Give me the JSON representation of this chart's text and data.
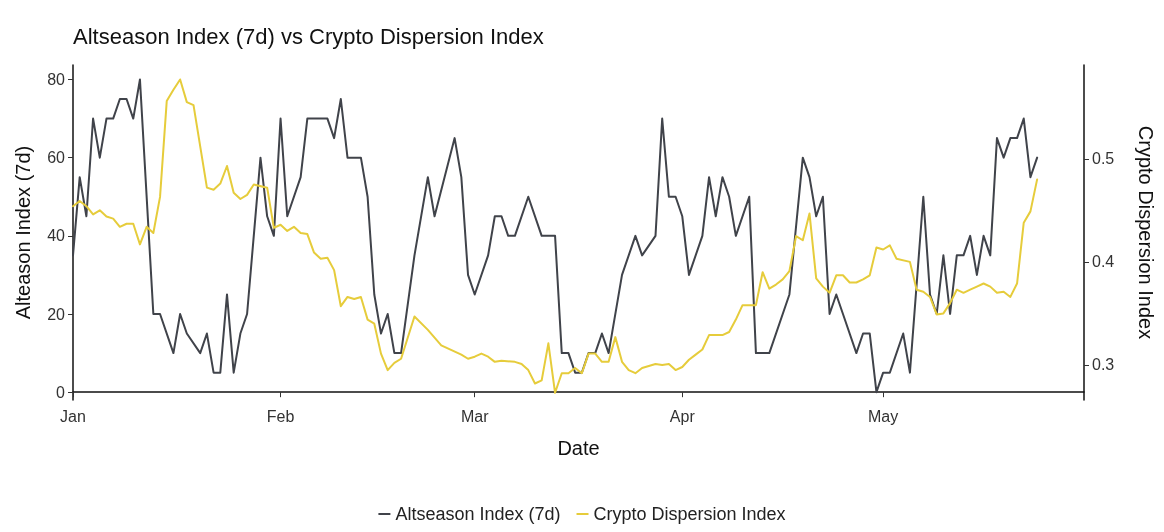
{
  "chart_data": {
    "type": "line",
    "title": "Altseason Index (7d) vs Crypto Dispersion Index",
    "xlabel": "Date",
    "ylabel": "Alteason Index (7d)",
    "y2label": "Crypto Dispersion Index",
    "xlim": [
      "--01-01",
      "--05-31"
    ],
    "xticks": [
      {
        "value": "--01-01",
        "label": "Jan"
      },
      {
        "value": "--02-01",
        "label": "Feb"
      },
      {
        "value": "--03-01",
        "label": "Mar"
      },
      {
        "value": "--04-01",
        "label": "Apr"
      },
      {
        "value": "--05-01",
        "label": "May"
      }
    ],
    "ylim": [
      -2,
      83.7
    ],
    "yticks": [
      0,
      20,
      40,
      60,
      80
    ],
    "y2lim": [
      0.266,
      0.591
    ],
    "y2ticks": [
      0.3,
      0.4,
      0.5
    ],
    "grid": false,
    "legend": "bottom",
    "marker": "none",
    "line_style": "solid",
    "series": [
      {
        "name": "Altseason Index (7d)",
        "color": "#40434a",
        "x": [
          "--01-01",
          "--01-02",
          "--01-03",
          "--01-04",
          "--01-05",
          "--01-06",
          "--01-07",
          "--01-08",
          "--01-09",
          "--01-10",
          "--01-11",
          "--01-13",
          "--01-14",
          "--01-16",
          "--01-17",
          "--01-18",
          "--01-20",
          "--01-21",
          "--01-22",
          "--01-23",
          "--01-24",
          "--01-25",
          "--01-26",
          "--01-27",
          "--01-29",
          "--01-30",
          "--01-31",
          "--02-01",
          "--02-02",
          "--02-04",
          "--02-05",
          "--02-08",
          "--02-09",
          "--02-10",
          "--02-11",
          "--02-13",
          "--02-14",
          "--02-15",
          "--02-16",
          "--02-17",
          "--02-18",
          "--02-19",
          "--02-21",
          "--02-23",
          "--02-24",
          "--02-27",
          "--02-28",
          "--02-29",
          "--03-01",
          "--03-03",
          "--03-04",
          "--03-05",
          "--03-06",
          "--03-07",
          "--03-09",
          "--03-11",
          "--03-13",
          "--03-14",
          "--03-15",
          "--03-16",
          "--03-17",
          "--03-18",
          "--03-19",
          "--03-20",
          "--03-21",
          "--03-23",
          "--03-25",
          "--03-26",
          "--03-28",
          "--03-29",
          "--03-30",
          "--03-31",
          "--04-01",
          "--04-02",
          "--04-04",
          "--04-05",
          "--04-06",
          "--04-07",
          "--04-08",
          "--04-09",
          "--04-11",
          "--04-12",
          "--04-14",
          "--04-17",
          "--04-19",
          "--04-20",
          "--04-21",
          "--04-22",
          "--04-23",
          "--04-24",
          "--04-25",
          "--04-27",
          "--04-28",
          "--04-29",
          "--04-30",
          "--05-01",
          "--05-02",
          "--05-04",
          "--05-05",
          "--05-07",
          "--05-08",
          "--05-09",
          "--05-10",
          "--05-11",
          "--05-12",
          "--05-13",
          "--05-14",
          "--05-15",
          "--05-16",
          "--05-17",
          "--05-18",
          "--05-19",
          "--05-20",
          "--05-21",
          "--05-22",
          "--05-23",
          "--05-24"
        ],
        "values": [
          35,
          55,
          45,
          70,
          60,
          70,
          70,
          75,
          75,
          70,
          80,
          20,
          20,
          10,
          20,
          15,
          10,
          15,
          5,
          5,
          25,
          5,
          15,
          20,
          60,
          45,
          40,
          70,
          45,
          55,
          70,
          70,
          65,
          75,
          60,
          60,
          50,
          25,
          15,
          20,
          10,
          10,
          35,
          55,
          45,
          65,
          55,
          30,
          25,
          35,
          45,
          45,
          40,
          40,
          50,
          40,
          40,
          10,
          10,
          5,
          5,
          10,
          10,
          15,
          10,
          30,
          40,
          35,
          40,
          70,
          50,
          50,
          45,
          30,
          40,
          55,
          45,
          55,
          50,
          40,
          50,
          10,
          10,
          25,
          60,
          55,
          45,
          50,
          20,
          25,
          20,
          10,
          15,
          15,
          0,
          5,
          5,
          15,
          5,
          50,
          25,
          20,
          35,
          20,
          35,
          35,
          40,
          30,
          40,
          35,
          65,
          60,
          65,
          65,
          70,
          55,
          60
        ]
      },
      {
        "name": "Crypto Dispersion Index",
        "color": "#e6cc3b",
        "axis": "y2",
        "x": [
          "--01-01",
          "--01-02",
          "--01-03",
          "--01-04",
          "--01-05",
          "--01-06",
          "--01-07",
          "--01-08",
          "--01-09",
          "--01-10",
          "--01-11",
          "--01-12",
          "--01-13",
          "--01-14",
          "--01-15",
          "--01-16",
          "--01-17",
          "--01-18",
          "--01-19",
          "--01-21",
          "--01-22",
          "--01-23",
          "--01-24",
          "--01-25",
          "--01-26",
          "--01-27",
          "--01-28",
          "--01-30",
          "--01-31",
          "--02-01",
          "--02-02",
          "--02-03",
          "--02-04",
          "--02-05",
          "--02-06",
          "--02-07",
          "--02-08",
          "--02-09",
          "--02-10",
          "--02-11",
          "--02-12",
          "--02-13",
          "--02-14",
          "--02-15",
          "--02-16",
          "--02-17",
          "--02-18",
          "--02-19",
          "--02-21",
          "--02-23",
          "--02-25",
          "--02-28",
          "--02-29",
          "--03-01",
          "--03-02",
          "--03-03",
          "--03-04",
          "--03-05",
          "--03-07",
          "--03-08",
          "--03-09",
          "--03-10",
          "--03-11",
          "--03-12",
          "--03-13",
          "--03-14",
          "--03-15",
          "--03-16",
          "--03-17",
          "--03-18",
          "--03-19",
          "--03-20",
          "--03-21",
          "--03-22",
          "--03-23",
          "--03-24",
          "--03-25",
          "--03-26",
          "--03-28",
          "--03-29",
          "--03-30",
          "--03-31",
          "--04-01",
          "--04-02",
          "--04-03",
          "--04-04",
          "--04-05",
          "--04-06",
          "--04-07",
          "--04-08",
          "--04-09",
          "--04-10",
          "--04-12",
          "--04-13",
          "--04-14",
          "--04-15",
          "--04-16",
          "--04-17",
          "--04-18",
          "--04-19",
          "--04-20",
          "--04-21",
          "--04-22",
          "--04-23",
          "--04-24",
          "--04-25",
          "--04-26",
          "--04-27",
          "--04-28",
          "--04-29",
          "--04-30",
          "--05-01",
          "--05-02",
          "--05-03",
          "--05-05",
          "--05-06",
          "--05-07",
          "--05-08",
          "--05-09",
          "--05-10",
          "--05-11",
          "--05-12",
          "--05-13",
          "--05-14",
          "--05-15",
          "--05-16",
          "--05-17",
          "--05-18",
          "--05-19",
          "--05-20",
          "--05-21",
          "--05-22",
          "--05-23",
          "--05-24"
        ],
        "values": [
          0.454,
          0.459,
          0.454,
          0.446,
          0.45,
          0.444,
          0.442,
          0.434,
          0.437,
          0.437,
          0.417,
          0.434,
          0.428,
          0.463,
          0.556,
          0.567,
          0.577,
          0.555,
          0.552,
          0.472,
          0.47,
          0.476,
          0.493,
          0.467,
          0.461,
          0.465,
          0.475,
          0.472,
          0.433,
          0.436,
          0.43,
          0.434,
          0.428,
          0.427,
          0.409,
          0.403,
          0.404,
          0.392,
          0.357,
          0.366,
          0.364,
          0.366,
          0.344,
          0.34,
          0.311,
          0.295,
          0.302,
          0.306,
          0.347,
          0.334,
          0.319,
          0.31,
          0.306,
          0.308,
          0.311,
          0.308,
          0.303,
          0.304,
          0.303,
          0.301,
          0.295,
          0.282,
          0.285,
          0.321,
          0.273,
          0.292,
          0.292,
          0.297,
          0.292,
          0.311,
          0.311,
          0.303,
          0.303,
          0.327,
          0.303,
          0.295,
          0.292,
          0.297,
          0.301,
          0.3,
          0.301,
          0.295,
          0.298,
          0.305,
          0.31,
          0.315,
          0.329,
          0.329,
          0.329,
          0.332,
          0.344,
          0.358,
          0.358,
          0.39,
          0.374,
          0.378,
          0.383,
          0.391,
          0.425,
          0.421,
          0.447,
          0.384,
          0.376,
          0.37,
          0.387,
          0.387,
          0.38,
          0.38,
          0.383,
          0.387,
          0.414,
          0.412,
          0.416,
          0.403,
          0.4,
          0.373,
          0.371,
          0.366,
          0.349,
          0.35,
          0.36,
          0.373,
          0.37,
          0.373,
          0.376,
          0.379,
          0.376,
          0.37,
          0.371,
          0.366,
          0.379,
          0.438,
          0.449,
          0.48
        ]
      }
    ]
  }
}
